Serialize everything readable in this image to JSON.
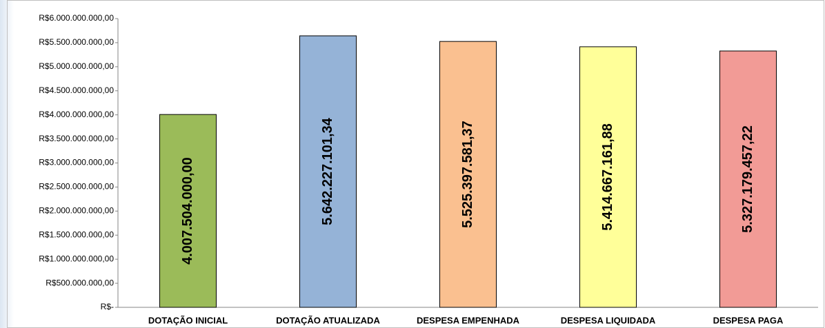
{
  "chart_data": {
    "type": "bar",
    "categories": [
      "DOTAÇÃO INICIAL",
      "DOTAÇÃO ATUALIZADA",
      "DESPESA EMPENHADA",
      "DESPESA LIQUIDADA",
      "DESPESA PAGA"
    ],
    "values": [
      4007504000.0,
      5642227101.34,
      5525397581.37,
      5414667161.88,
      5327179457.22
    ],
    "value_labels": [
      "4.007.504.000,00",
      "5.642.227.101,34",
      "5.525.397.581,37",
      "5.414.667.161,88",
      "5.327.179.457,22"
    ],
    "colors": [
      "#9bbb59",
      "#95b3d7",
      "#fac090",
      "#ffff99",
      "#f29b96"
    ],
    "ylim": [
      0,
      6000000000
    ],
    "yticks": [
      {
        "value": 0,
        "label": "R$-"
      },
      {
        "value": 500000000,
        "label": "R$500.000.000,00"
      },
      {
        "value": 1000000000,
        "label": "R$1.000.000.000,00"
      },
      {
        "value": 1500000000,
        "label": "R$1.500.000.000,00"
      },
      {
        "value": 2000000000,
        "label": "R$2.000.000.000,00"
      },
      {
        "value": 2500000000,
        "label": "R$2.500.000.000,00"
      },
      {
        "value": 3000000000,
        "label": "R$3.000.000.000,00"
      },
      {
        "value": 3500000000,
        "label": "R$3.500.000.000,00"
      },
      {
        "value": 4000000000,
        "label": "R$4.000.000.000,00"
      },
      {
        "value": 4500000000,
        "label": "R$4.500.000.000,00"
      },
      {
        "value": 5000000000,
        "label": "R$5.000.000.000,00"
      },
      {
        "value": 5500000000,
        "label": "R$5.500.000.000,00"
      },
      {
        "value": 6000000000,
        "label": "R$6.000.000.000,00"
      }
    ]
  }
}
